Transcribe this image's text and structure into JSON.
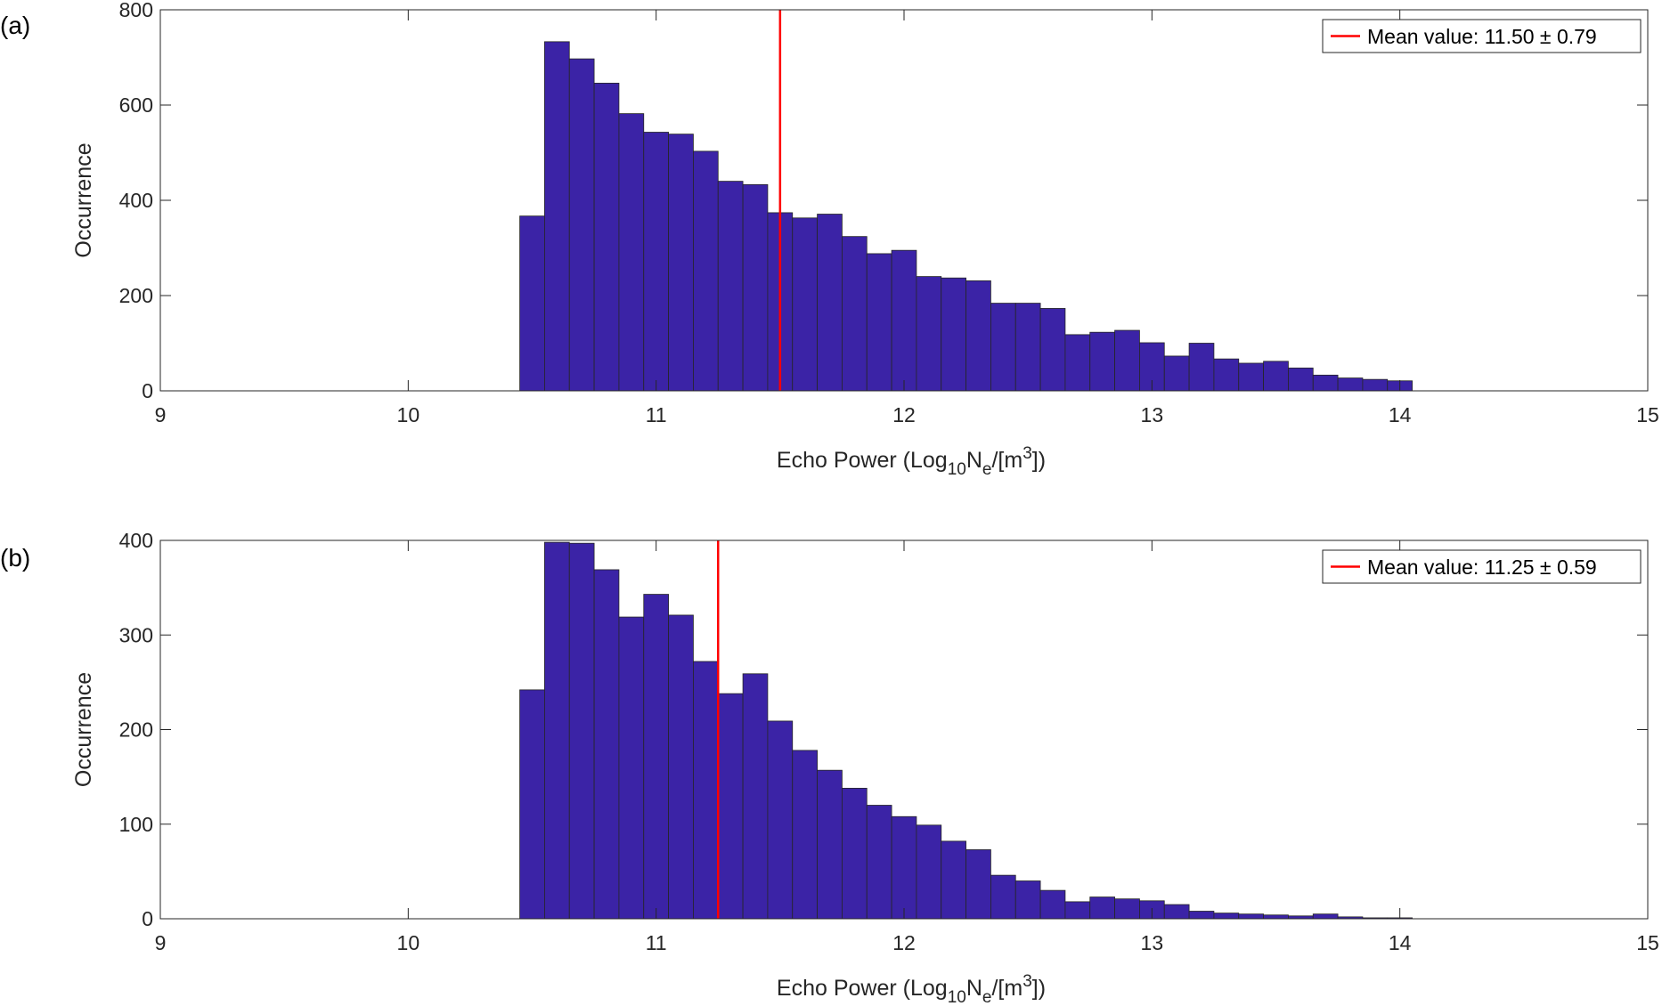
{
  "chart_data": [
    {
      "type": "bar",
      "panel_label": "(a)",
      "xlabel": "Echo Power (Log",
      "xlabel_sub": "10",
      "xlabel_mid": "N",
      "xlabel_sub2": "e",
      "xlabel_end": "/[m",
      "xlabel_sup": "3",
      "xlabel_close": "])",
      "ylabel": "Occurrence",
      "xlim": [
        9,
        15
      ],
      "ylim": [
        0,
        800
      ],
      "xticks": [
        "9",
        "10",
        "11",
        "12",
        "13",
        "14",
        "15"
      ],
      "yticks": [
        "0",
        "200",
        "400",
        "600",
        "800"
      ],
      "bin_start": 10.45,
      "bin_width": 0.1,
      "values": [
        367,
        733,
        697,
        646,
        582,
        543,
        539,
        503,
        440,
        433,
        374,
        363,
        371,
        324,
        288,
        295,
        240,
        237,
        231,
        184,
        184,
        173,
        118,
        123,
        127,
        101,
        73,
        100,
        67,
        58,
        62,
        48,
        33,
        27,
        24,
        21
      ],
      "mean_line_x": 11.5,
      "legend": {
        "label": "Mean value: 11.50 ± 0.79",
        "placement": "top-right"
      },
      "bar_color": "#3b23a6",
      "mean_color": "#ff0000",
      "grid": false
    },
    {
      "type": "bar",
      "panel_label": "(b)",
      "xlabel": "Echo Power (Log",
      "xlabel_sub": "10",
      "xlabel_mid": "N",
      "xlabel_sub2": "e",
      "xlabel_end": "/[m",
      "xlabel_sup": "3",
      "xlabel_close": "])",
      "ylabel": "Occurrence",
      "xlim": [
        9,
        15
      ],
      "ylim": [
        0,
        400
      ],
      "xticks": [
        "9",
        "10",
        "11",
        "12",
        "13",
        "14",
        "15"
      ],
      "yticks": [
        "0",
        "100",
        "200",
        "300",
        "400"
      ],
      "bin_start": 10.45,
      "bin_width": 0.1,
      "values": [
        242,
        398,
        397,
        369,
        319,
        343,
        321,
        272,
        238,
        259,
        209,
        178,
        157,
        138,
        120,
        108,
        99,
        82,
        73,
        46,
        40,
        30,
        18,
        23,
        21,
        19,
        15,
        8,
        6,
        5,
        4,
        3,
        5,
        2,
        1,
        1
      ],
      "mean_line_x": 11.25,
      "legend": {
        "label": "Mean value: 11.25 ± 0.59",
        "placement": "top-right"
      },
      "bar_color": "#3b23a6",
      "mean_color": "#ff0000",
      "grid": false
    }
  ]
}
